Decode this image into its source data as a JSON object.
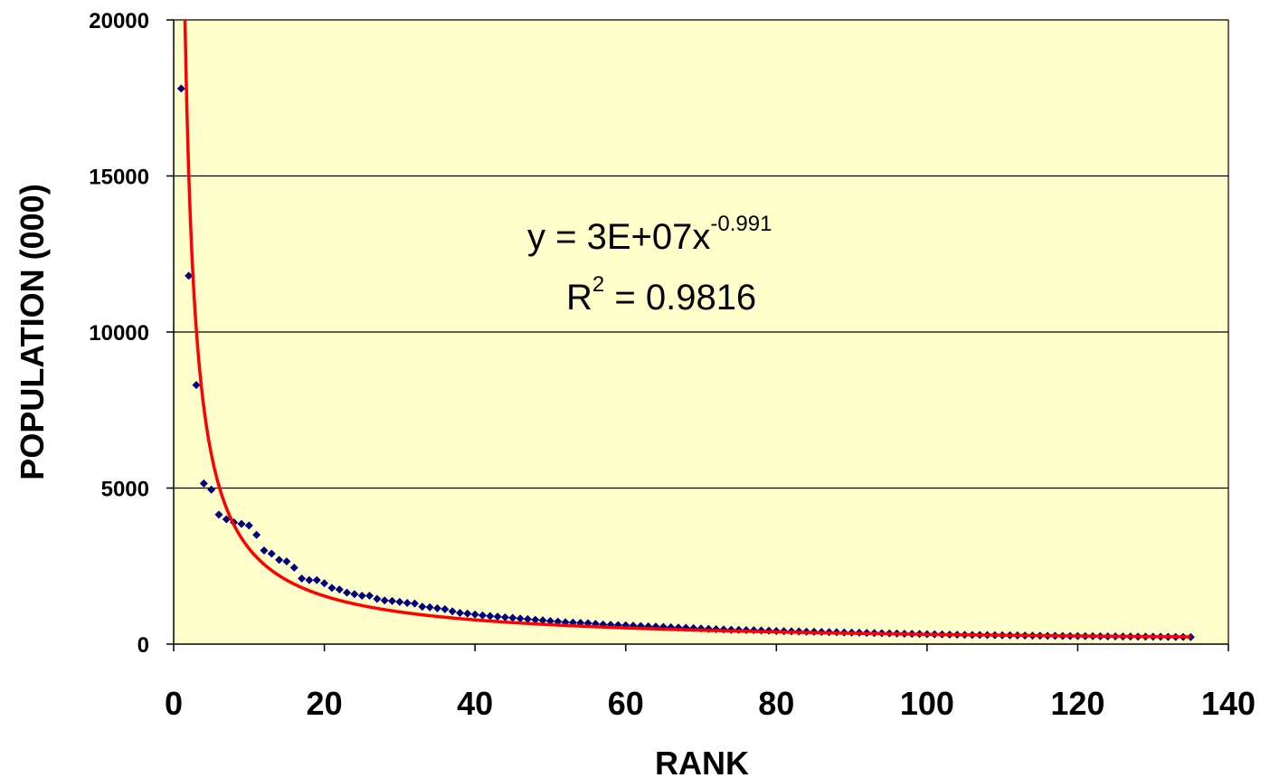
{
  "chart_data": {
    "type": "scatter",
    "title": "",
    "xlabel": "RANK",
    "ylabel": "POPULATION (000)",
    "xlim": [
      0,
      140
    ],
    "ylim": [
      0,
      20000
    ],
    "xticks": [
      "0",
      "20",
      "40",
      "60",
      "80",
      "100",
      "120",
      "140"
    ],
    "yticks": [
      "0",
      "5000",
      "10000",
      "15000",
      "20000"
    ],
    "grid": "horizontal",
    "legend": "none",
    "colors": {
      "plot_background": "#ffffcc",
      "points": "#00007f",
      "trendline": "#ff0000"
    },
    "series": [
      {
        "values_y": [
          17800,
          11800,
          8300,
          5150,
          4950,
          4150,
          4000,
          3900,
          3850,
          3800,
          3500,
          3000,
          2900,
          2700,
          2650,
          2450,
          2100,
          2050,
          2050,
          1950,
          1800,
          1750,
          1650,
          1600,
          1550,
          1550,
          1450,
          1400,
          1380,
          1350,
          1320,
          1300,
          1200,
          1180,
          1150,
          1120,
          1050,
          1000,
          980,
          950,
          920,
          900,
          880,
          860,
          840,
          820,
          800,
          780,
          760,
          740,
          720,
          700,
          690,
          680,
          670,
          650,
          630,
          620,
          610,
          600,
          590,
          580,
          570,
          560,
          550,
          540,
          530,
          520,
          510,
          500,
          490,
          480,
          470,
          460,
          455,
          450,
          445,
          440,
          430,
          420,
          415,
          410,
          405,
          400,
          395,
          390,
          385,
          380,
          375,
          370,
          365,
          360,
          355,
          350,
          345,
          340,
          335,
          330,
          325,
          320,
          315,
          310,
          305,
          300,
          298,
          295,
          292,
          290,
          287,
          284,
          281,
          278,
          275,
          272,
          269,
          266,
          263,
          260,
          258,
          256,
          254,
          252,
          250,
          248,
          246,
          244,
          242,
          240,
          238,
          236,
          234,
          232,
          230,
          228,
          226
        ]
      }
    ],
    "trendline": {
      "type": "power",
      "coefficient": 30000000,
      "exponent": -0.991,
      "scale_factor": 0.001
    },
    "annotations": {
      "equation_prefix": "y = 3E+07x",
      "equation_exponent": "-0.991",
      "r2_prefix": "R",
      "r2_exponent": "2",
      "r2_value": " = 0.9816"
    }
  }
}
